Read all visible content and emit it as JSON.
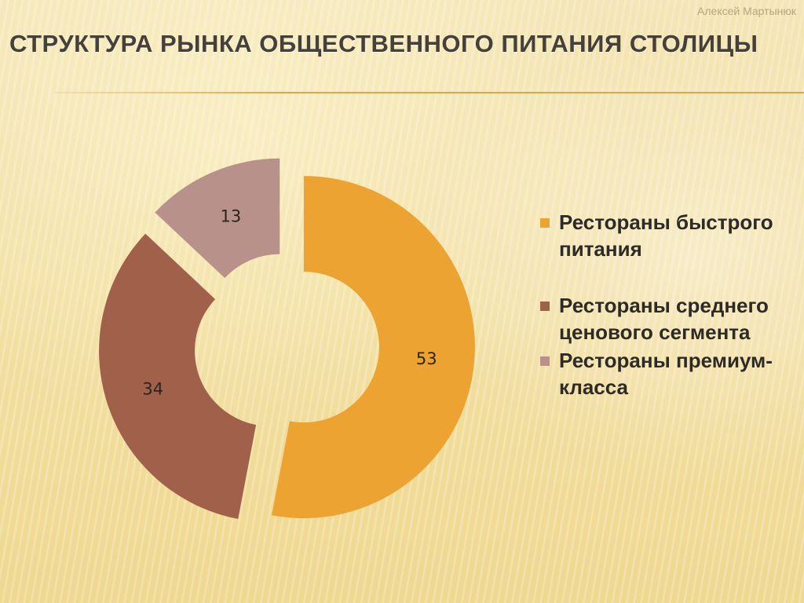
{
  "author": "Алексей Мартынюк",
  "title": "СТРУКТУРА РЫНКА ОБЩЕСТВЕННОГО ПИТАНИЯ СТОЛИЦЫ",
  "chart_data": {
    "type": "pie",
    "variant": "exploded-doughnut",
    "categories": [
      "Рестораны быстрого питания",
      "Рестораны среднего ценового сегмента",
      "Рестораны премиум-класса"
    ],
    "values": [
      53,
      34,
      13
    ],
    "data_labels": [
      "53",
      "34",
      "13"
    ],
    "colors": [
      "#eda332",
      "#a0604a",
      "#b8928a"
    ],
    "legend_position": "right"
  },
  "legend": {
    "items": [
      {
        "label": "Рестораны быстрого питания",
        "color": "#eda332"
      },
      {
        "label": "Рестораны среднего ценового сегмента",
        "color": "#a0604a"
      },
      {
        "label": "Рестораны премиум-класса",
        "color": "#b8928a"
      }
    ]
  }
}
